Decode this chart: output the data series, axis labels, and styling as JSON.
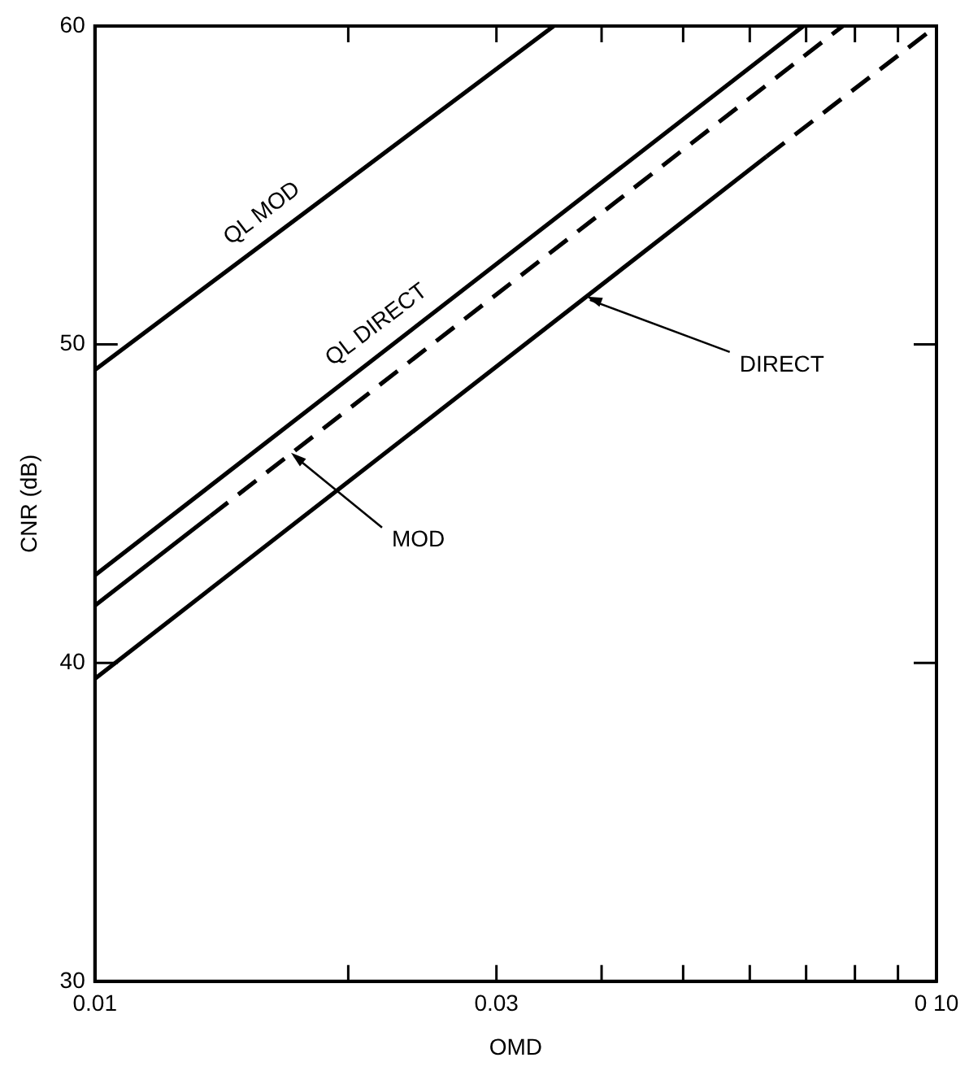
{
  "chart_data": {
    "type": "line",
    "xlabel": "OMD",
    "ylabel": "CNR (dB)",
    "log": "x",
    "grid": false,
    "legend": false,
    "marker": "none",
    "xlim": [
      0.01,
      0.1
    ],
    "xticks": [
      0.01,
      {
        "value": 0.02,
        "label": null
      },
      0.03,
      {
        "value": 0.04,
        "label": null
      },
      {
        "value": 0.05,
        "label": null
      },
      {
        "value": 0.06,
        "label": null
      },
      {
        "value": 0.07,
        "label": null
      },
      {
        "value": 0.08,
        "label": null
      },
      {
        "value": 0.09,
        "label": null
      },
      {
        "value": 0.1,
        "label": "0 10"
      }
    ],
    "ylim": [
      30,
      60
    ],
    "yticks": [
      30,
      40,
      50,
      60
    ],
    "series": [
      {
        "color": "#000000",
        "line_style": "solid",
        "x": [
          0.01,
          0.0351
        ],
        "values": [
          49.2,
          60
        ]
      },
      {
        "color": "#000000",
        "line_style": "solid",
        "x": [
          0.01,
          0.0695
        ],
        "values": [
          42.75,
          60
        ]
      },
      {
        "color": "#000000",
        "line_style": "solid",
        "x": [
          0.01,
          0.0137
        ],
        "values": [
          41.8,
          44.6
        ]
      },
      {
        "color": "#000000",
        "line_style": "dashed",
        "x": [
          0.0137,
          0.0774
        ],
        "values": [
          44.6,
          60
        ]
      },
      {
        "color": "#000000",
        "line_style": "solid",
        "x": [
          0.01,
          0.0628
        ],
        "values": [
          39.5,
          55.9
        ]
      },
      {
        "color": "#000000",
        "line_style": "dashed",
        "x": [
          0.0628,
          0.1
        ],
        "values": [
          55.9,
          60
        ]
      }
    ],
    "annotations": [
      {
        "text": "QL MOD",
        "x": 0.01645,
        "y": 53.5
      },
      {
        "text": "QL DIRECT",
        "x": 0.0225,
        "y": 50.0
      },
      {
        "text": "MOD",
        "x": 0.0171,
        "y": 46.6
      },
      {
        "text": "DIRECT",
        "x": 0.0384,
        "y": 51.5
      }
    ]
  }
}
